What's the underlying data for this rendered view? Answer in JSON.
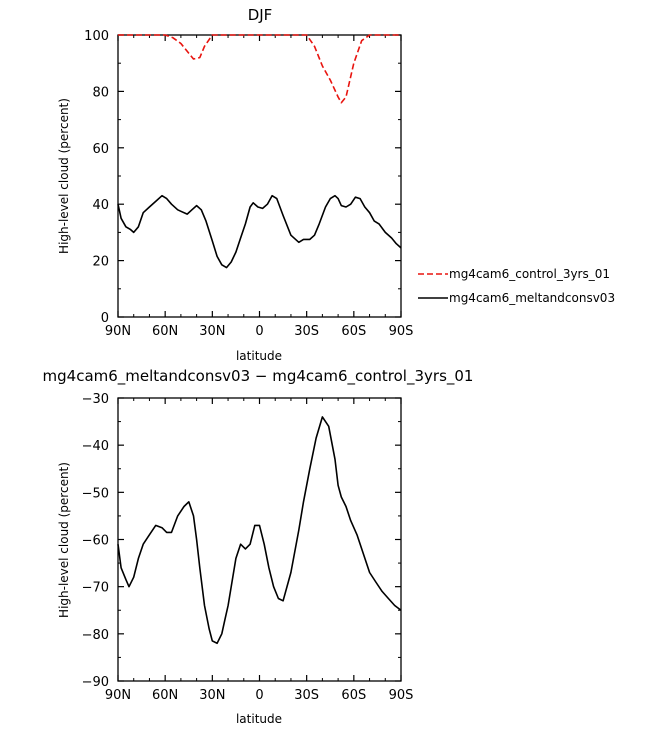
{
  "chart_data": [
    {
      "type": "line",
      "title": "DJF",
      "xlabel": "latitude",
      "ylabel": "High-level cloud (percent)",
      "xlim": [
        90,
        -90
      ],
      "ylim": [
        0,
        100
      ],
      "x_ticks": [
        90,
        60,
        30,
        0,
        -30,
        -60,
        -90
      ],
      "x_tick_labels": [
        "90N",
        "60N",
        "30N",
        "0",
        "30S",
        "60S",
        "90S"
      ],
      "y_ticks": [
        0,
        20,
        40,
        60,
        80,
        100
      ],
      "y_tick_labels": [
        "0",
        "20",
        "40",
        "60",
        "80",
        "100"
      ],
      "legend_position": "right",
      "series": [
        {
          "name": "mg4cam6_control_3yrs_01",
          "color": "#e8140f",
          "dash": "dashed",
          "x": [
            90,
            70,
            60,
            55,
            50,
            45,
            42,
            38,
            35,
            30,
            25,
            20,
            0,
            -20,
            -30,
            -35,
            -40,
            -45,
            -50,
            -52,
            -55,
            -60,
            -65,
            -70,
            -90
          ],
          "y": [
            100,
            100,
            100,
            99,
            97,
            93.5,
            91.5,
            92,
            96,
            100,
            100,
            100,
            100,
            100,
            100,
            96,
            89,
            84,
            78,
            76,
            78,
            90,
            98,
            100,
            100
          ]
        },
        {
          "name": "mg4cam6_meltandconsv03",
          "color": "#000000",
          "dash": "solid",
          "x": [
            90,
            88,
            85,
            82,
            80,
            77,
            74,
            70,
            66,
            62,
            59,
            56,
            52,
            50,
            46,
            43,
            40,
            37,
            34,
            30,
            27,
            24,
            21,
            18,
            15,
            12,
            9,
            6,
            4,
            1,
            -2,
            -5,
            -8,
            -11,
            -15,
            -20,
            -25,
            -28,
            -32,
            -35,
            -38,
            -42,
            -45,
            -48,
            -50,
            -52,
            -55,
            -58,
            -61,
            -64,
            -67,
            -70,
            -73,
            -76,
            -80,
            -84,
            -87,
            -90
          ],
          "y": [
            40,
            35,
            32,
            31,
            30,
            32,
            37,
            39,
            41,
            43,
            42,
            40,
            38,
            37.5,
            36.5,
            38,
            39.5,
            38,
            34,
            27,
            21.5,
            18.5,
            17.5,
            19.5,
            23,
            28,
            33,
            39,
            40.5,
            39,
            38.5,
            40,
            43,
            42,
            36,
            29,
            26.5,
            27.5,
            27.5,
            29,
            33,
            39,
            42,
            43,
            42,
            39.5,
            39,
            40,
            42.5,
            42,
            39,
            37,
            34,
            33,
            30,
            28,
            26,
            24.5
          ]
        }
      ]
    },
    {
      "type": "line",
      "title": "mg4cam6_meltandconsv03 − mg4cam6_control_3yrs_01",
      "xlabel": "latitude",
      "ylabel": "High-level cloud (percent)",
      "xlim": [
        90,
        -90
      ],
      "ylim": [
        -90,
        -30
      ],
      "x_ticks": [
        90,
        60,
        30,
        0,
        -30,
        -60,
        -90
      ],
      "x_tick_labels": [
        "90N",
        "60N",
        "30N",
        "0",
        "30S",
        "60S",
        "90S"
      ],
      "y_ticks": [
        -90,
        -80,
        -70,
        -60,
        -50,
        -40,
        -30
      ],
      "y_tick_labels": [
        "−90",
        "−80",
        "−70",
        "−60",
        "−50",
        "−40",
        "−30"
      ],
      "series": [
        {
          "name": "",
          "color": "#000000",
          "dash": "solid",
          "x": [
            90,
            88,
            85,
            83,
            80,
            77,
            74,
            70,
            66,
            62,
            59,
            56,
            52,
            48,
            45,
            42,
            40,
            38,
            35,
            32,
            30,
            27,
            24,
            22,
            20,
            18,
            15,
            12,
            9,
            6,
            3,
            0,
            -3,
            -6,
            -9,
            -12,
            -15,
            -20,
            -25,
            -28,
            -32,
            -36,
            -40,
            -44,
            -48,
            -50,
            -52,
            -55,
            -58,
            -62,
            -66,
            -70,
            -74,
            -78,
            -82,
            -86,
            -90
          ],
          "y": [
            -61,
            -66,
            -68.5,
            -70,
            -68,
            -64,
            -61,
            -59,
            -57,
            -57.5,
            -58.5,
            -58.5,
            -55,
            -53,
            -52,
            -55,
            -60,
            -66,
            -74,
            -79,
            -81.5,
            -82,
            -80,
            -77,
            -74,
            -70,
            -64,
            -61,
            -62,
            -61,
            -57,
            -57,
            -61,
            -66,
            -70,
            -72.5,
            -73,
            -67,
            -58,
            -52,
            -45,
            -38.5,
            -34,
            -36,
            -43,
            -48.5,
            -51,
            -53,
            -56,
            -59,
            -63,
            -67,
            -69,
            -71,
            -72.5,
            -74,
            -75
          ]
        }
      ]
    }
  ]
}
